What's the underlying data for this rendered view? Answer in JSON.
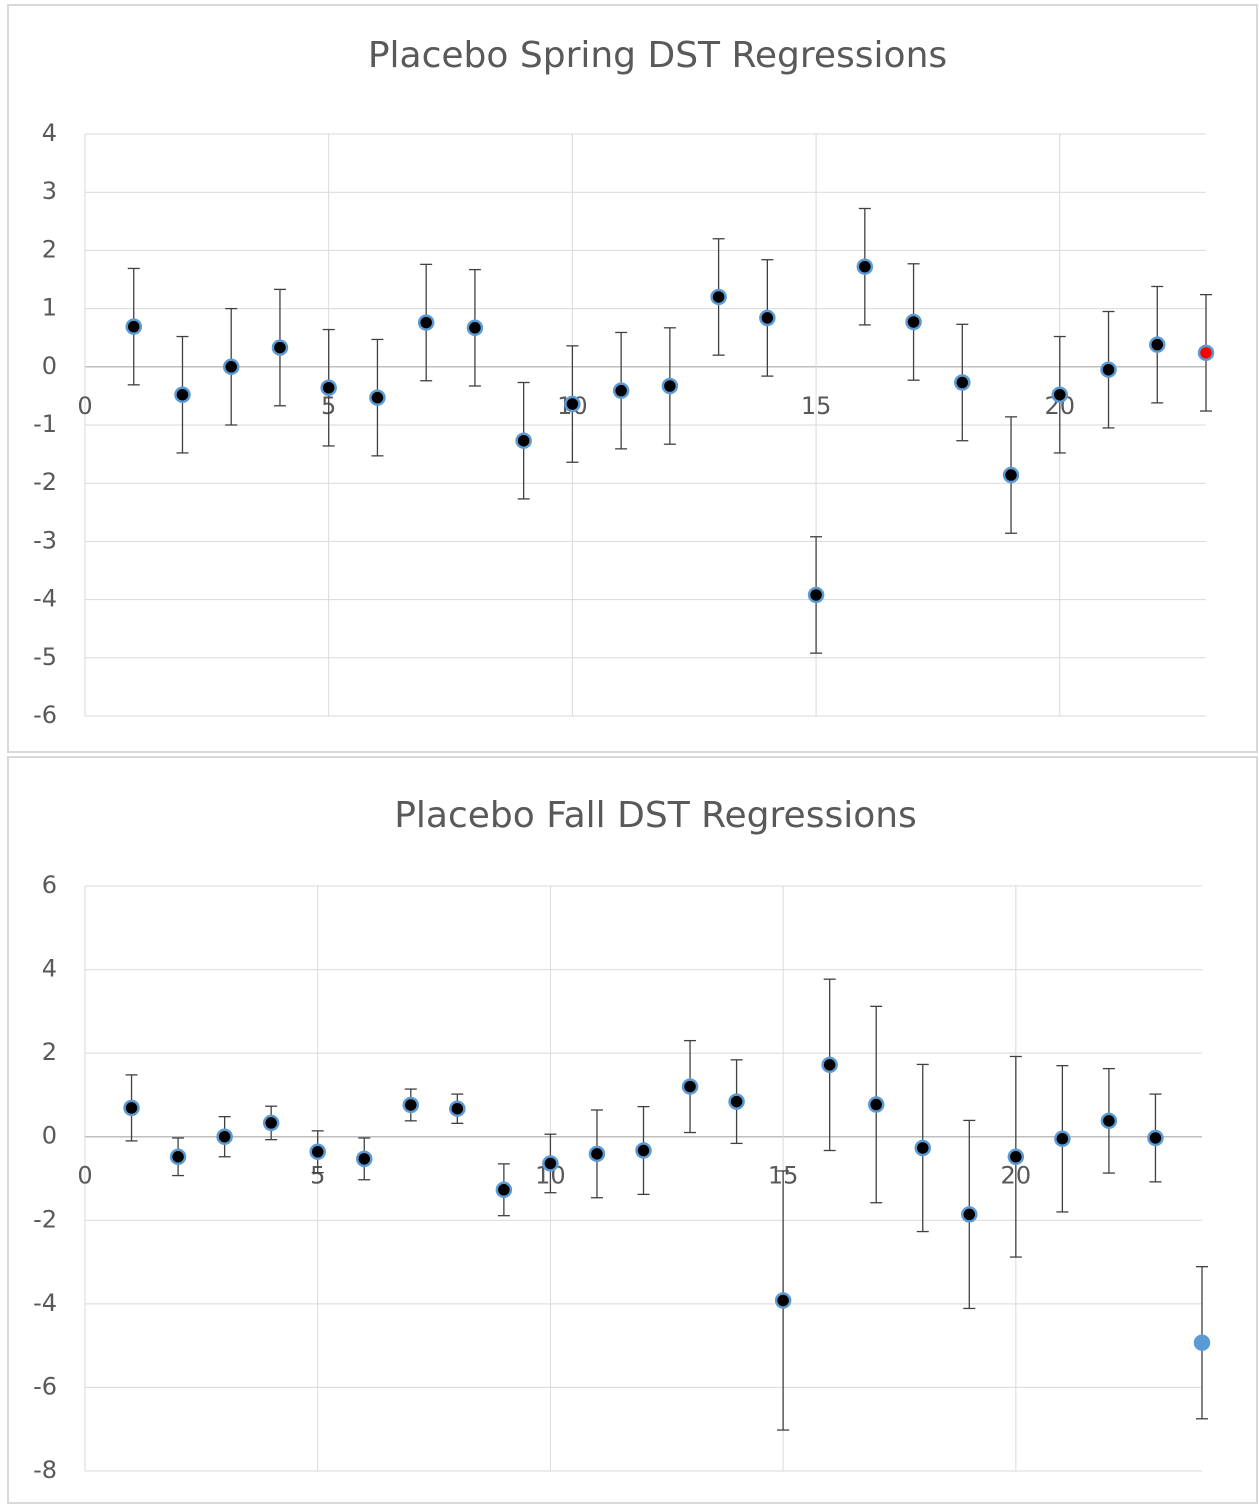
{
  "chart_data": [
    {
      "type": "scatter",
      "title": "Placebo Spring DST Regressions",
      "xlim": [
        0,
        23
      ],
      "xticks": [
        0,
        5,
        10,
        15,
        20
      ],
      "ylim": [
        -6,
        4
      ],
      "yticks": [
        -6,
        -5,
        -4,
        -3,
        -2,
        -1,
        0,
        1,
        2,
        3,
        4
      ],
      "grid": true,
      "series": [
        {
          "color": "#000000",
          "edgecolor": "#5b9bd5",
          "x": [
            1,
            2,
            3,
            4,
            5,
            6,
            7,
            8,
            9,
            10,
            11,
            12,
            13,
            14,
            15,
            16,
            17,
            18,
            19,
            20,
            21,
            22
          ],
          "values": [
            0.69,
            -0.48,
            0.0,
            0.33,
            -0.36,
            -0.53,
            0.76,
            0.67,
            -1.27,
            -0.64,
            -0.41,
            -0.33,
            1.2,
            0.84,
            -3.92,
            1.72,
            0.77,
            -0.27,
            -1.86,
            -0.48,
            -0.05,
            0.38
          ],
          "errors": [
            1.0,
            1.0,
            1.0,
            1.0,
            1.0,
            1.0,
            1.0,
            1.0,
            1.0,
            1.0,
            1.0,
            1.0,
            1.0,
            1.0,
            1.0,
            1.0,
            1.0,
            1.0,
            1.0,
            1.0,
            1.0,
            1.0
          ]
        },
        {
          "color": "#ff0000",
          "edgecolor": "#5b9bd5",
          "x": [
            23
          ],
          "values": [
            0.24
          ],
          "errors": [
            1.0
          ]
        }
      ]
    },
    {
      "type": "scatter",
      "title": "Placebo Fall DST Regressions",
      "xlim": [
        0,
        24
      ],
      "xticks": [
        0,
        5,
        10,
        15,
        20
      ],
      "ylim": [
        -8,
        6
      ],
      "yticks": [
        -8,
        -6,
        -4,
        -2,
        0,
        2,
        4,
        6
      ],
      "grid": true,
      "series": [
        {
          "color": "#000000",
          "edgecolor": "#5b9bd5",
          "x": [
            1,
            2,
            3,
            4,
            5,
            6,
            7,
            8,
            9,
            10,
            11,
            12,
            13,
            14,
            15,
            16,
            17,
            18,
            19,
            20,
            21,
            22,
            23
          ],
          "values": [
            0.69,
            -0.48,
            0.0,
            0.33,
            -0.36,
            -0.53,
            0.76,
            0.67,
            -1.27,
            -0.64,
            -0.41,
            -0.33,
            1.2,
            0.84,
            -3.92,
            1.72,
            0.77,
            -0.27,
            -1.86,
            -0.48,
            -0.05,
            0.38,
            -0.03
          ],
          "errors": [
            0.79,
            0.45,
            0.48,
            0.4,
            0.5,
            0.5,
            0.38,
            0.35,
            0.62,
            0.7,
            1.05,
            1.05,
            1.1,
            1.0,
            3.1,
            2.05,
            2.35,
            2.0,
            2.25,
            2.4,
            1.75,
            1.25,
            1.05
          ]
        },
        {
          "color": "#5b9bd5",
          "edgecolor": "#5b9bd5",
          "x": [
            24
          ],
          "values": [
            -4.93
          ],
          "errors": [
            1.82
          ]
        }
      ]
    }
  ]
}
